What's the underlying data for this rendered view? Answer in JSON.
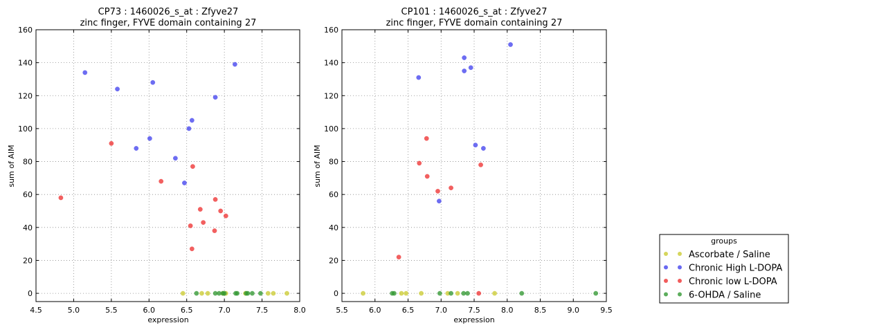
{
  "chart_data": [
    {
      "type": "scatter",
      "title": "CP73 : 1460026_s_at : Zfyve27",
      "subtitle": "zinc finger, FYVE domain containing 27",
      "xlabel": "expression",
      "ylabel": "sum of AIM",
      "xlim": [
        4.5,
        8.0
      ],
      "ylim": [
        -5,
        160
      ],
      "xticks": [
        "4.5",
        "5.0",
        "5.5",
        "6.0",
        "6.5",
        "7.0",
        "7.5",
        "8.0"
      ],
      "yticks": [
        "0",
        "20",
        "40",
        "60",
        "80",
        "100",
        "120",
        "140",
        "160"
      ],
      "grid": true,
      "series": [
        {
          "name": "Ascorbate / Saline",
          "color": "#cccc33",
          "points": [
            [
              6.45,
              0
            ],
            [
              6.7,
              0
            ],
            [
              6.78,
              0
            ],
            [
              6.98,
              0
            ],
            [
              7.02,
              0
            ],
            [
              7.28,
              0
            ],
            [
              7.58,
              0
            ],
            [
              7.65,
              0
            ],
            [
              7.83,
              0
            ]
          ]
        },
        {
          "name": "Chronic High L-DOPA",
          "color": "#4444ee",
          "points": [
            [
              5.15,
              134
            ],
            [
              5.58,
              124
            ],
            [
              6.05,
              128
            ],
            [
              5.83,
              88
            ],
            [
              6.01,
              94
            ],
            [
              6.35,
              82
            ],
            [
              6.47,
              67
            ],
            [
              6.53,
              100
            ],
            [
              6.57,
              105
            ],
            [
              6.88,
              119
            ],
            [
              7.14,
              139
            ]
          ]
        },
        {
          "name": "Chronic low L-DOPA",
          "color": "#ee3333",
          "points": [
            [
              4.83,
              58
            ],
            [
              5.5,
              91
            ],
            [
              6.16,
              68
            ],
            [
              6.58,
              77
            ],
            [
              6.55,
              41
            ],
            [
              6.57,
              27
            ],
            [
              6.68,
              51
            ],
            [
              6.72,
              43
            ],
            [
              6.88,
              57
            ],
            [
              6.87,
              38
            ],
            [
              6.95,
              50
            ],
            [
              7.02,
              47
            ]
          ]
        },
        {
          "name": "6-OHDA / Saline",
          "color": "#339933",
          "points": [
            [
              6.63,
              0
            ],
            [
              6.88,
              0
            ],
            [
              6.93,
              0
            ],
            [
              6.98,
              0
            ],
            [
              7.0,
              0
            ],
            [
              7.15,
              0
            ],
            [
              7.17,
              0
            ],
            [
              7.29,
              0
            ],
            [
              7.31,
              0
            ],
            [
              7.37,
              0
            ],
            [
              7.48,
              0
            ]
          ]
        }
      ]
    },
    {
      "type": "scatter",
      "title": "CP101 : 1460026_s_at : Zfyve27",
      "subtitle": "zinc finger, FYVE domain containing 27",
      "xlabel": "expression",
      "ylabel": "sum of AIM",
      "xlim": [
        5.5,
        9.5
      ],
      "ylim": [
        -5,
        160
      ],
      "xticks": [
        "5.5",
        "6.0",
        "6.5",
        "7.0",
        "7.5",
        "8.0",
        "8.5",
        "9.0",
        "9.5"
      ],
      "yticks": [
        "0",
        "20",
        "40",
        "60",
        "80",
        "100",
        "120",
        "140",
        "160"
      ],
      "grid": true,
      "series": [
        {
          "name": "Ascorbate / Saline",
          "color": "#cccc33",
          "points": [
            [
              5.82,
              0
            ],
            [
              6.4,
              0
            ],
            [
              6.47,
              0
            ],
            [
              6.7,
              0
            ],
            [
              7.1,
              0
            ],
            [
              7.25,
              0
            ],
            [
              7.81,
              0
            ]
          ]
        },
        {
          "name": "Chronic High L-DOPA",
          "color": "#4444ee",
          "points": [
            [
              6.66,
              131
            ],
            [
              6.97,
              56
            ],
            [
              7.35,
              143
            ],
            [
              7.35,
              135
            ],
            [
              7.45,
              137
            ],
            [
              7.52,
              90
            ],
            [
              7.64,
              88
            ],
            [
              8.05,
              151
            ]
          ]
        },
        {
          "name": "Chronic low L-DOPA",
          "color": "#ee3333",
          "points": [
            [
              6.36,
              22
            ],
            [
              6.67,
              79
            ],
            [
              6.78,
              94
            ],
            [
              6.79,
              71
            ],
            [
              6.95,
              62
            ],
            [
              7.15,
              64
            ],
            [
              7.6,
              78
            ],
            [
              7.57,
              0
            ]
          ]
        },
        {
          "name": "6-OHDA / Saline",
          "color": "#339933",
          "points": [
            [
              6.26,
              0
            ],
            [
              6.29,
              0
            ],
            [
              6.98,
              0
            ],
            [
              7.15,
              0
            ],
            [
              7.34,
              0
            ],
            [
              7.4,
              0
            ],
            [
              8.22,
              0
            ],
            [
              9.34,
              0
            ]
          ]
        }
      ]
    }
  ],
  "legend": {
    "title": "groups",
    "position": "lower-right",
    "entries": [
      {
        "label": "Ascorbate / Saline",
        "color": "#cccc33"
      },
      {
        "label": "Chronic High L-DOPA",
        "color": "#4444ee"
      },
      {
        "label": "Chronic low L-DOPA",
        "color": "#ee3333"
      },
      {
        "label": "6-OHDA / Saline",
        "color": "#339933"
      }
    ]
  }
}
